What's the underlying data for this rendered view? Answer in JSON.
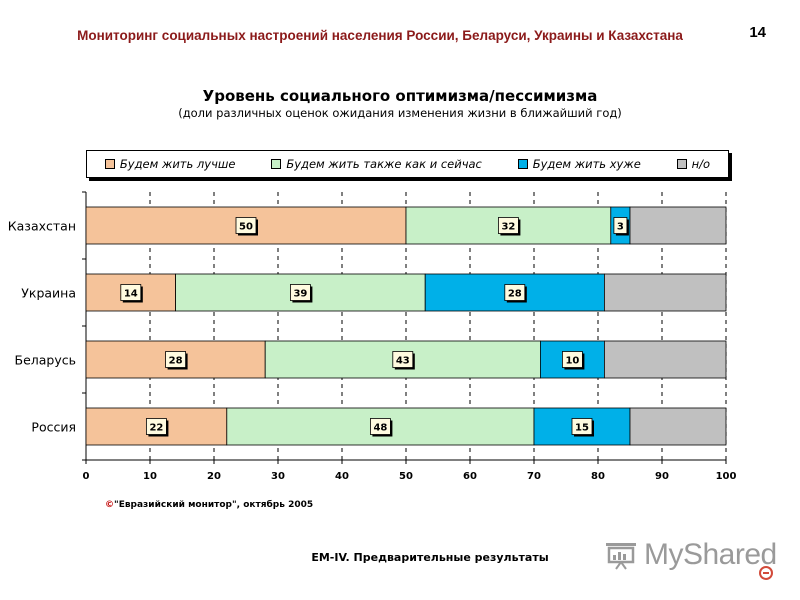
{
  "header": {
    "title": "Мониторинг социальных настроений населения России, Беларуси, Украины и Казахстана",
    "page_number": "14"
  },
  "chart_data": {
    "type": "bar",
    "orientation": "horizontal",
    "stacked": true,
    "title": "Уровень социального оптимизма/пессимизма",
    "subtitle": "(доли различных оценок ожидания изменения жизни в ближайший год)",
    "categories": [
      "Казахстан",
      "Украина",
      "Беларусь",
      "Россия"
    ],
    "series": [
      {
        "name": "Будем жить лучше",
        "color": "#f5c39a",
        "values": [
          50,
          14,
          28,
          22
        ]
      },
      {
        "name": "Будем жить также как и сейчас",
        "color": "#c8f0c8",
        "values": [
          32,
          39,
          43,
          48
        ]
      },
      {
        "name": "Будем жить хуже",
        "color": "#00b0e8",
        "values": [
          3,
          28,
          10,
          15
        ]
      },
      {
        "name": "н/о",
        "color": "#c0c0c0",
        "values": [
          15,
          19,
          19,
          15
        ]
      }
    ],
    "labelled_series": [
      0,
      1,
      2
    ],
    "xlim": [
      0,
      100
    ],
    "xticks": [
      0,
      10,
      20,
      30,
      40,
      50,
      60,
      70,
      80,
      90,
      100
    ],
    "grid": true,
    "legend": "top"
  },
  "source_note": {
    "symbol": "©",
    "text": "\"Евразийский монитор\", октябрь 2005"
  },
  "footer": {
    "text": "EM-IV. Предварительные результаты"
  },
  "logo": {
    "text": "MyShared"
  }
}
